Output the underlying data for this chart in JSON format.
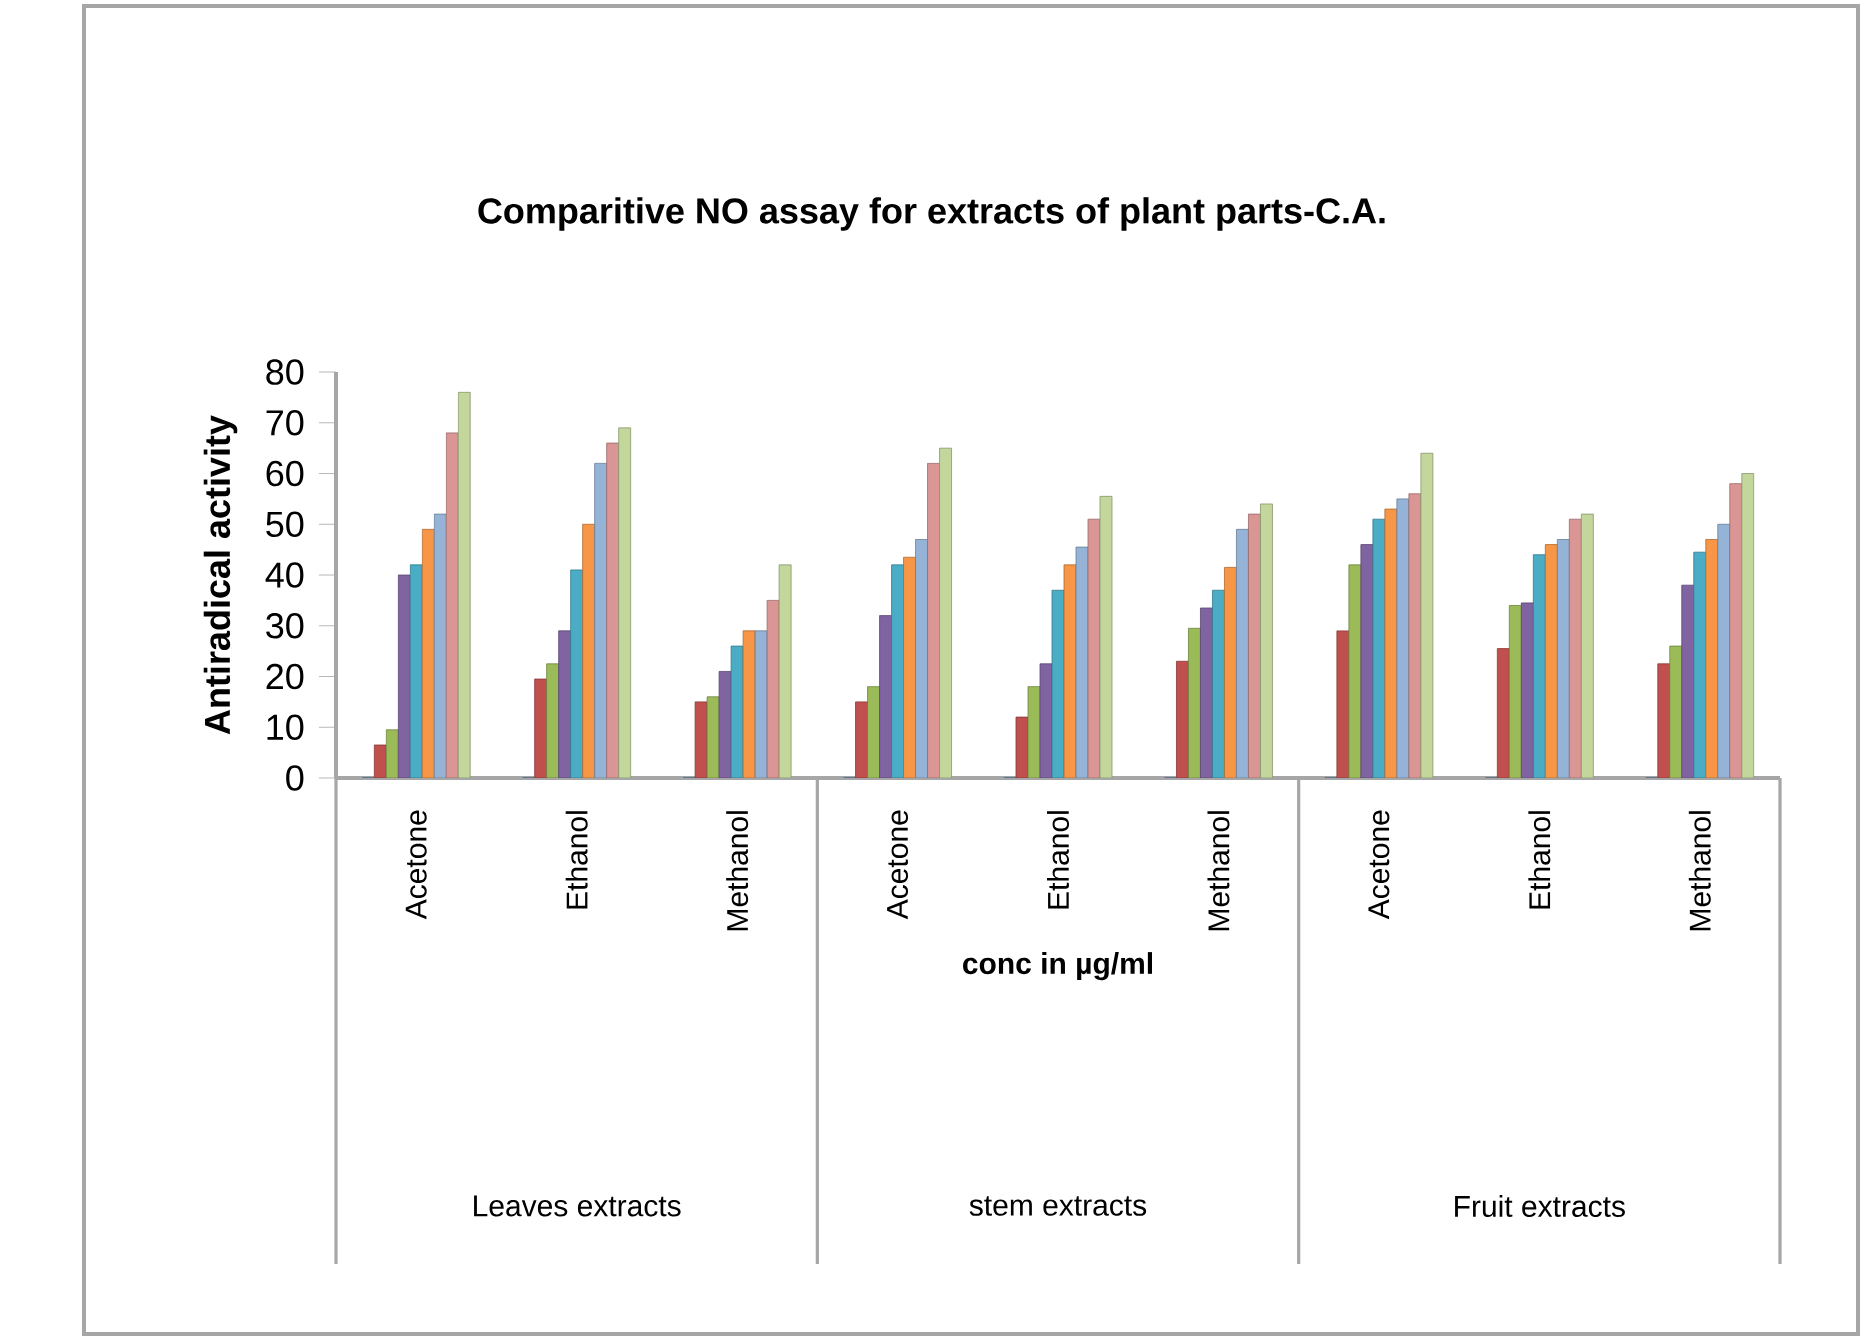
{
  "chart_data": {
    "type": "bar",
    "title": "Comparitive NO assay for extracts of plant parts-C.A.",
    "xlabel": "conc in µg/ml",
    "ylabel": "Antiradical activity",
    "categories": [
      "Acetone",
      "Ethanol",
      "Methanol",
      "Acetone",
      "Ethanol",
      "Methanol",
      "Acetone",
      "Ethanol",
      "Methanol"
    ],
    "series": [
      {
        "color": "#4f81bd",
        "values": [
          0,
          0,
          0,
          0,
          0,
          0,
          0,
          0,
          0
        ]
      },
      {
        "color": "#c0504d",
        "values": [
          6.5,
          19.5,
          15,
          15,
          12,
          23,
          29,
          25.5,
          22.5
        ]
      },
      {
        "color": "#9bbb59",
        "values": [
          9.5,
          22.5,
          16,
          18,
          18,
          29.5,
          42,
          34,
          26
        ]
      },
      {
        "color": "#8064a2",
        "values": [
          40,
          29,
          21,
          32,
          22.5,
          33.5,
          46,
          34.5,
          38
        ]
      },
      {
        "color": "#4bacc6",
        "values": [
          42,
          41,
          26,
          42,
          37,
          37,
          51,
          44,
          44.5
        ]
      },
      {
        "color": "#f79646",
        "values": [
          49,
          50,
          29,
          43.5,
          42,
          41.5,
          53,
          46,
          47
        ]
      },
      {
        "color": "#95b3d7",
        "values": [
          52,
          62,
          29,
          47,
          45.5,
          49,
          55,
          47,
          50
        ]
      },
      {
        "color": "#d99694",
        "values": [
          68,
          66,
          35,
          62,
          51,
          52,
          56,
          51,
          58
        ]
      },
      {
        "color": "#c3d69b",
        "values": [
          76,
          69,
          42,
          65,
          55.5,
          54,
          64,
          52,
          60
        ]
      }
    ],
    "ylim": [
      0,
      80
    ],
    "yticks": [
      0,
      10,
      20,
      30,
      40,
      50,
      60,
      70,
      80
    ],
    "grid": false,
    "annotations": [
      "Leaves extracts",
      "stem extracts",
      "Fruit extracts"
    ]
  }
}
